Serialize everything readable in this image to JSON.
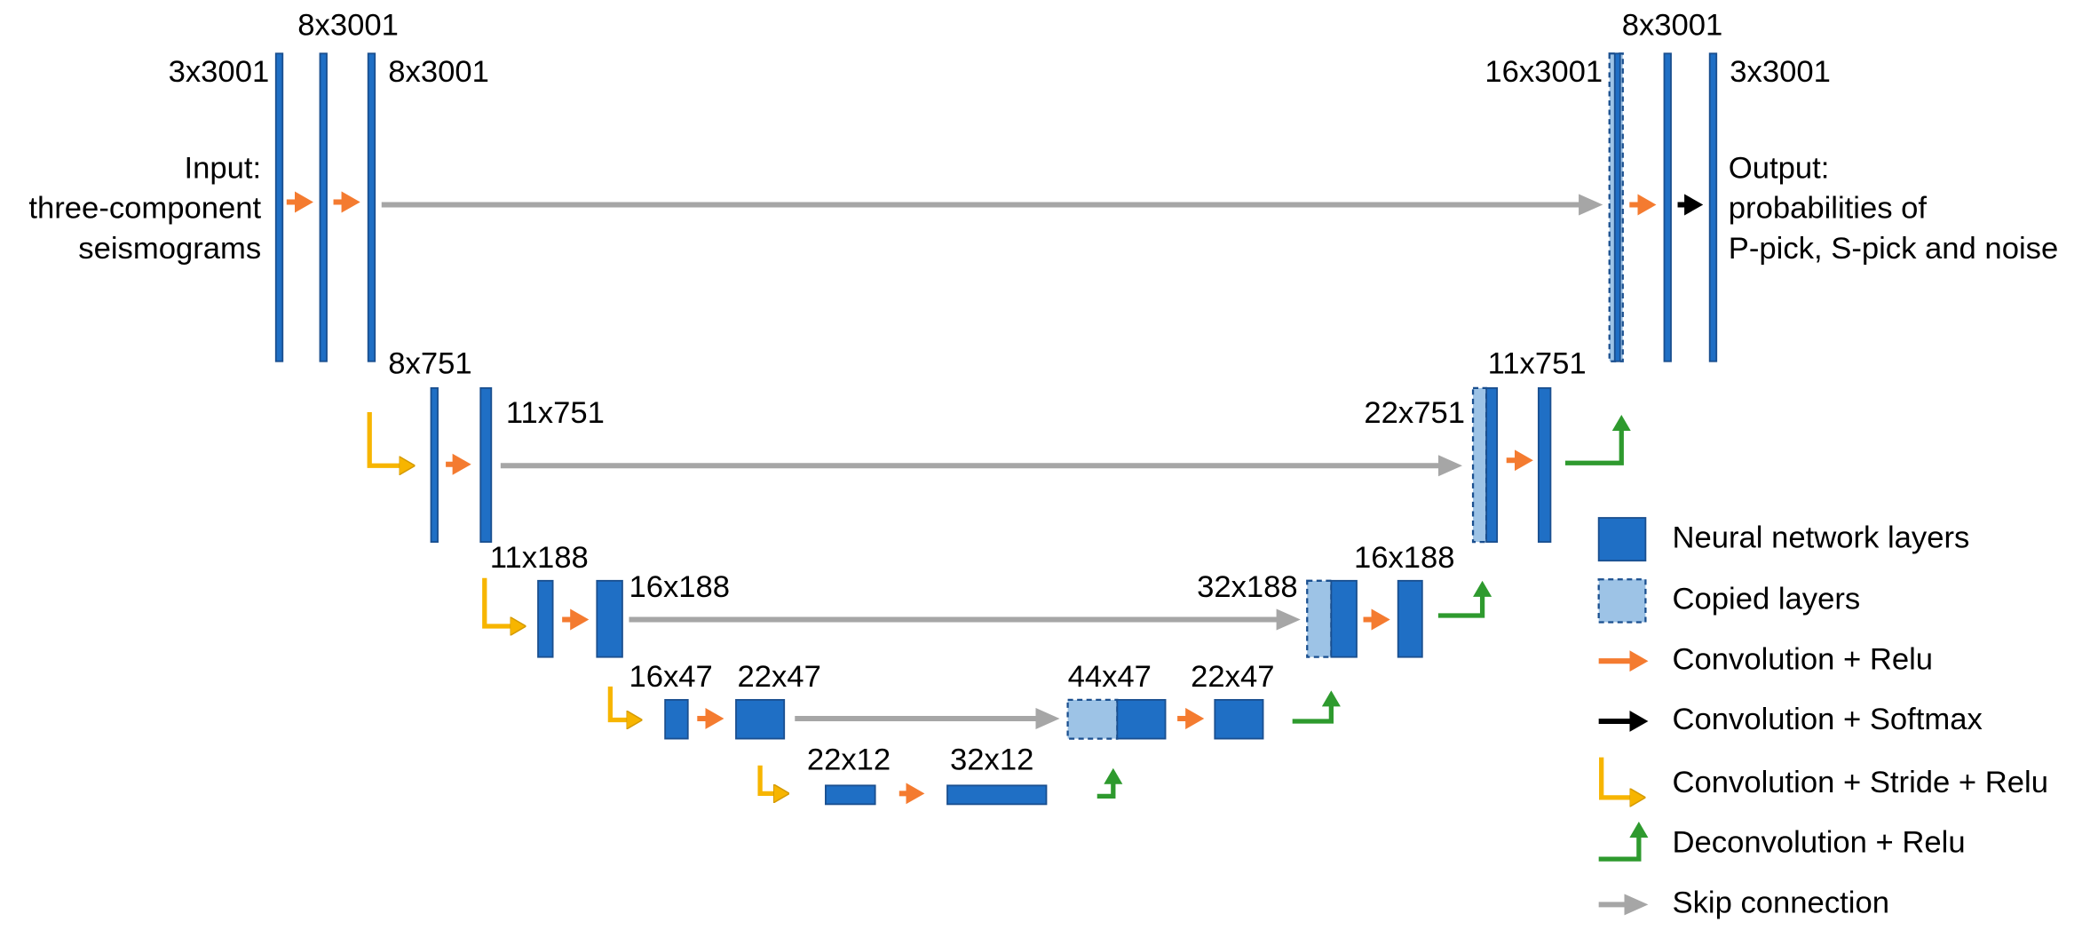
{
  "input": [
    "Input:",
    "three-component",
    "seismograms"
  ],
  "output": [
    "Output:",
    "probabilities of",
    "P-pick, S-pick and noise"
  ],
  "layer_labels": [
    "3x3001",
    "8x3001",
    "8x3001",
    "16x3001",
    "8x3001",
    "3x3001",
    "8x751",
    "11x751",
    "22x751",
    "11x751",
    "11x188",
    "16x188",
    "32x188",
    "16x188",
    "16x47",
    "22x47",
    "44x47",
    "22x47",
    "22x12",
    "32x12"
  ],
  "legend": [
    "Neural network layers",
    "Copied layers",
    "Convolution + Relu",
    "Convolution + Softmax",
    "Convolution + Stride + Relu",
    "Deconvolution + Relu",
    "Skip connection"
  ]
}
